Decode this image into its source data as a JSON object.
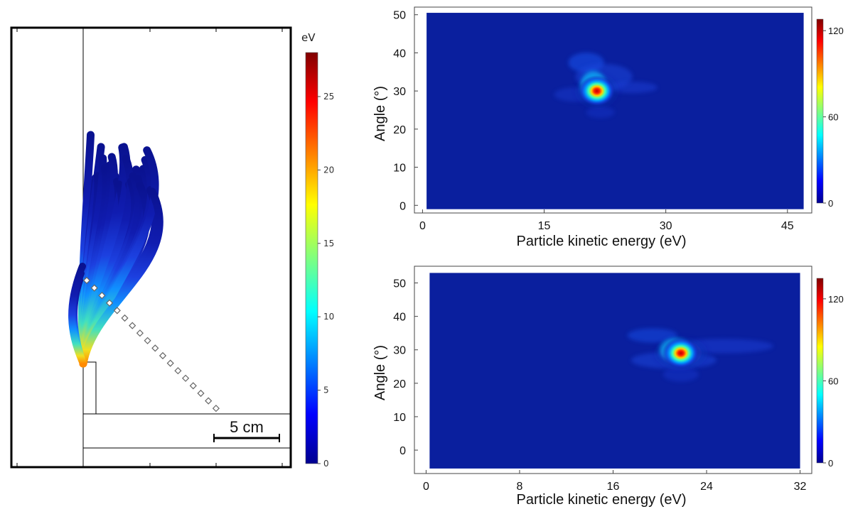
{
  "colors": {
    "jet_low": "#00008f",
    "jet_bg": "#0a1f9e",
    "jet_high": "#800000",
    "frame": "#000000"
  },
  "chart_data": [
    {
      "type": "trajectory_plot",
      "colorbar": {
        "unit": "eV",
        "range": [
          0,
          28
        ],
        "ticks": [
          0,
          5,
          10,
          15,
          20,
          25
        ]
      },
      "scale_bar_label": "5 cm",
      "trajectory_count": 26
    },
    {
      "type": "heatmap",
      "xlabel": "Particle kinetic energy (eV)",
      "ylabel": "Angle (°)",
      "xlim": [
        -1,
        48
      ],
      "ylim": [
        -2,
        52
      ],
      "xticks": [
        0,
        15,
        30,
        45
      ],
      "yticks": [
        0,
        10,
        20,
        30,
        40,
        50
      ],
      "data_extent": {
        "x": [
          0.5,
          47
        ],
        "y": [
          -1,
          50.5
        ]
      },
      "peak": {
        "x": 21.5,
        "y": 30,
        "value": 125
      },
      "colorbar": {
        "range": [
          0,
          128
        ],
        "ticks": [
          0,
          60,
          120
        ]
      }
    },
    {
      "type": "heatmap",
      "xlabel": "Particle kinetic energy (eV)",
      "ylabel": "Angle (°)",
      "xlim": [
        -1,
        33
      ],
      "ylim": [
        -7,
        55
      ],
      "xticks": [
        0,
        8,
        16,
        24,
        32
      ],
      "yticks": [
        0,
        10,
        20,
        30,
        40,
        50
      ],
      "data_extent": {
        "x": [
          0.3,
          32
        ],
        "y": [
          -5.5,
          53
        ]
      },
      "peak": {
        "x": 21.8,
        "y": 29,
        "value": 130
      },
      "colorbar": {
        "range": [
          0,
          135
        ],
        "ticks": [
          0,
          60,
          120
        ]
      }
    }
  ]
}
